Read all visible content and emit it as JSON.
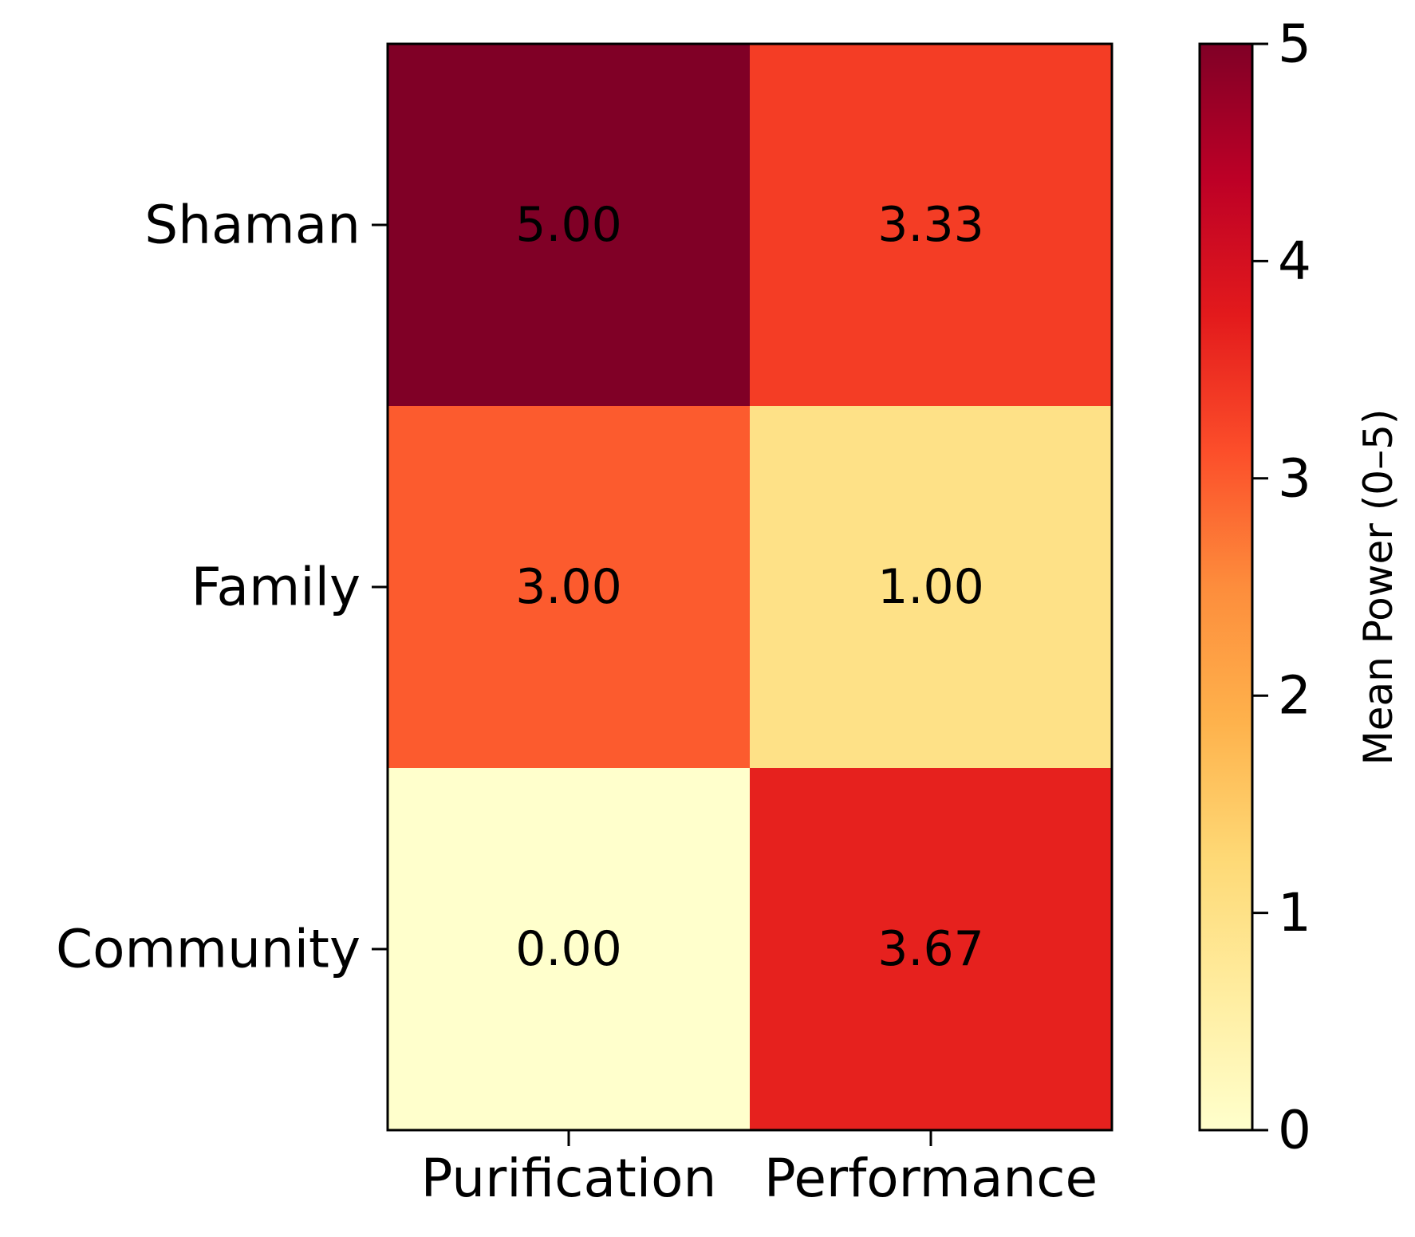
{
  "chart_data": {
    "type": "heatmap",
    "title": "",
    "xlabel": "",
    "ylabel": "",
    "x_categories": [
      "Purification",
      "Performance"
    ],
    "y_categories": [
      "Shaman",
      "Family",
      "Community"
    ],
    "values": [
      [
        5.0,
        3.33
      ],
      [
        3.0,
        1.0
      ],
      [
        0.0,
        3.67
      ]
    ],
    "cell_labels": [
      [
        "5.00",
        "3.33"
      ],
      [
        "3.00",
        "1.00"
      ],
      [
        "0.00",
        "3.67"
      ]
    ],
    "colormap": "YlOrRd",
    "colormap_stops": [
      "#ffffcc",
      "#ffeda0",
      "#fed976",
      "#feb24c",
      "#fd8d3c",
      "#fc4e2a",
      "#e31a1c",
      "#bd0026",
      "#800026"
    ],
    "colorbar": {
      "label": "Mean Power (0–5)",
      "range": [
        0,
        5
      ],
      "ticks": [
        "0",
        "1",
        "2",
        "3",
        "4",
        "5"
      ],
      "position": "right"
    },
    "grid": false
  }
}
